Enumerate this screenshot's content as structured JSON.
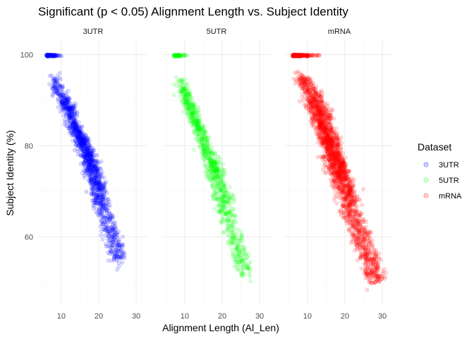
{
  "chart_data": {
    "type": "scatter",
    "title": "Significant (p < 0.05) Alignment Length vs. Subject Identity",
    "xlabel": "Alignment Length (Al_Len)",
    "ylabel": "Subject Identity (%)",
    "xlim": [
      4,
      33
    ],
    "ylim": [
      45,
      103
    ],
    "x_ticks": [
      10,
      20,
      30
    ],
    "y_ticks": [
      60,
      80,
      100
    ],
    "grid": true,
    "legend": {
      "title": "Dataset",
      "position": "right",
      "entries": [
        "3UTR",
        "5UTR",
        "mRNA"
      ]
    },
    "facets": [
      {
        "name": "3UTR",
        "color": "#0000ff",
        "summary": {
          "x_range": [
            6,
            28
          ],
          "y_range": [
            49,
            100
          ],
          "point_count_relative": "medium",
          "clusters": [
            {
              "y": 100,
              "x": [
                6,
                12
              ]
            },
            {
              "y": [
                87,
                94
              ],
              "x": [
                7,
                14
              ]
            },
            {
              "y": [
                80,
                89
              ],
              "x": [
                10,
                17
              ]
            },
            {
              "y": [
                75,
                85
              ],
              "x": [
                12,
                20
              ]
            },
            {
              "y": [
                70,
                82
              ],
              "x": [
                14,
                22
              ]
            },
            {
              "y": [
                55,
                78
              ],
              "x": [
                15,
                27
              ]
            }
          ]
        }
      },
      {
        "name": "5UTR",
        "color": "#00ff00",
        "summary": {
          "x_range": [
            6,
            28
          ],
          "y_range": [
            49,
            100
          ],
          "point_count_relative": "low",
          "clusters": [
            {
              "y": 100,
              "x": [
                7,
                12
              ]
            },
            {
              "y": [
                87,
                94
              ],
              "x": [
                8,
                13
              ]
            },
            {
              "y": [
                80,
                89
              ],
              "x": [
                10,
                17
              ]
            },
            {
              "y": [
                74,
                85
              ],
              "x": [
                12,
                20
              ]
            },
            {
              "y": [
                68,
                80
              ],
              "x": [
                14,
                23
              ]
            },
            {
              "y": [
                52,
                76
              ],
              "x": [
                15,
                28
              ]
            }
          ]
        }
      },
      {
        "name": "mRNA",
        "color": "#ff0000",
        "summary": {
          "x_range": [
            6,
            31
          ],
          "y_range": [
            47,
            100
          ],
          "point_count_relative": "high",
          "clusters": [
            {
              "y": 100,
              "x": [
                6,
                15
              ]
            },
            {
              "y": [
                86,
                95
              ],
              "x": [
                7,
                17
              ]
            },
            {
              "y": [
                80,
                90
              ],
              "x": [
                9,
                19
              ]
            },
            {
              "y": [
                74,
                86
              ],
              "x": [
                11,
                21
              ]
            },
            {
              "y": [
                68,
                82
              ],
              "x": [
                13,
                24
              ]
            },
            {
              "y": [
                50,
                78
              ],
              "x": [
                14,
                31
              ]
            }
          ]
        }
      }
    ]
  }
}
